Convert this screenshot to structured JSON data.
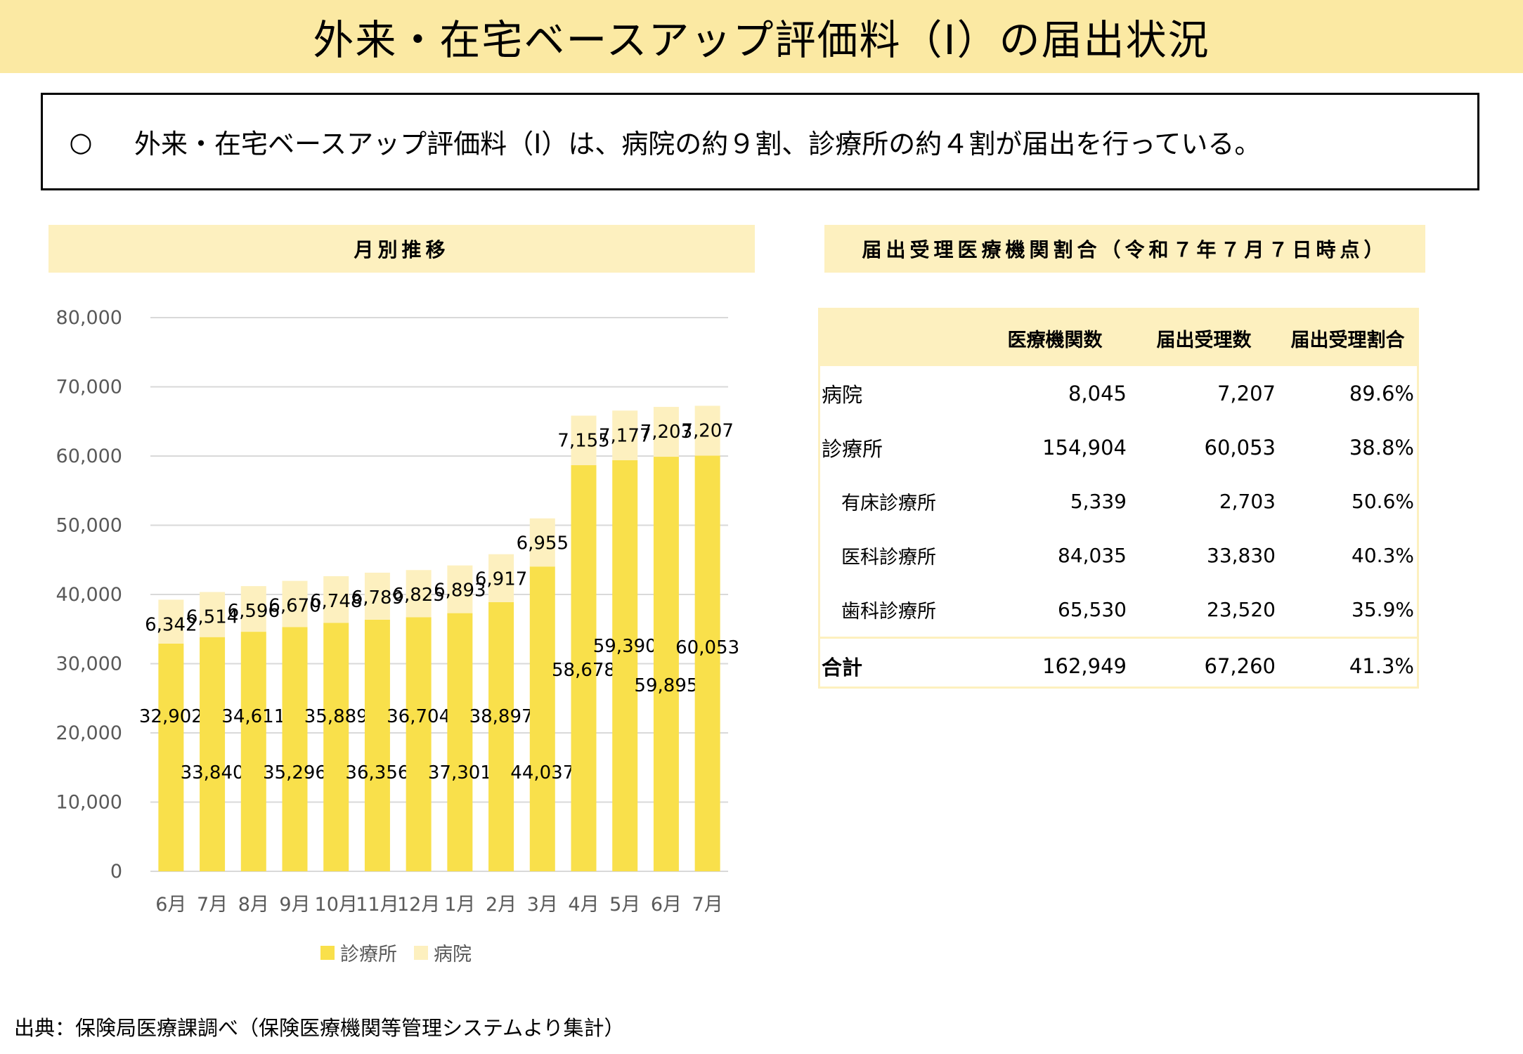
{
  "page": {
    "title": "外来・在宅ベースアップ評価料（Ⅰ）の届出状況",
    "summary_bullet": "○",
    "summary_text": "外来・在宅ベースアップ評価料（Ⅰ）は、病院の約９割、診療所の約４割が届出を行っている。",
    "source": "出典：保険局医療課調べ（保険医療機関等管理システムより集計）"
  },
  "chart_section": {
    "header": "月別推移"
  },
  "table_section": {
    "header": "届出受理医療機関割合（令和７年７月７日時点）",
    "columns": [
      "",
      "医療機関数",
      "届出受理数",
      "届出受理割合"
    ],
    "rows": [
      {
        "name": "病院",
        "count": "8,045",
        "accepted": "7,207",
        "ratio": "89.6%"
      },
      {
        "name": "診療所",
        "count": "154,904",
        "accepted": "60,053",
        "ratio": "38.8%"
      },
      {
        "name": "有床診療所",
        "count": "5,339",
        "accepted": "2,703",
        "ratio": "50.6%"
      },
      {
        "name": "医科診療所",
        "count": "84,035",
        "accepted": "33,830",
        "ratio": "40.3%"
      },
      {
        "name": "歯科診療所",
        "count": "65,530",
        "accepted": "23,520",
        "ratio": "35.9%"
      }
    ],
    "total": {
      "name": "合計",
      "count": "162,949",
      "accepted": "67,260",
      "ratio": "41.3%"
    }
  },
  "chart_data": {
    "type": "bar",
    "stacked": true,
    "categories": [
      "6月",
      "7月",
      "8月",
      "9月",
      "10月",
      "11月",
      "12月",
      "1月",
      "2月",
      "3月",
      "4月",
      "5月",
      "6月",
      "7月"
    ],
    "series": [
      {
        "name": "診療所",
        "color": "#f9e04b",
        "values": [
          32902,
          33840,
          34611,
          35296,
          35889,
          36356,
          36704,
          37301,
          38897,
          44037,
          58678,
          59390,
          59895,
          60053
        ]
      },
      {
        "name": "病院",
        "color": "#fdf0bf",
        "values": [
          6342,
          6514,
          6596,
          6670,
          6748,
          6789,
          6825,
          6893,
          6917,
          6955,
          7155,
          7177,
          7203,
          7207
        ]
      }
    ],
    "ylim": [
      0,
      80000
    ],
    "yticks": [
      "0",
      "10,000",
      "20,000",
      "30,000",
      "40,000",
      "50,000",
      "60,000",
      "70,000",
      "80,000"
    ],
    "grid": true,
    "legend": "bottom"
  }
}
